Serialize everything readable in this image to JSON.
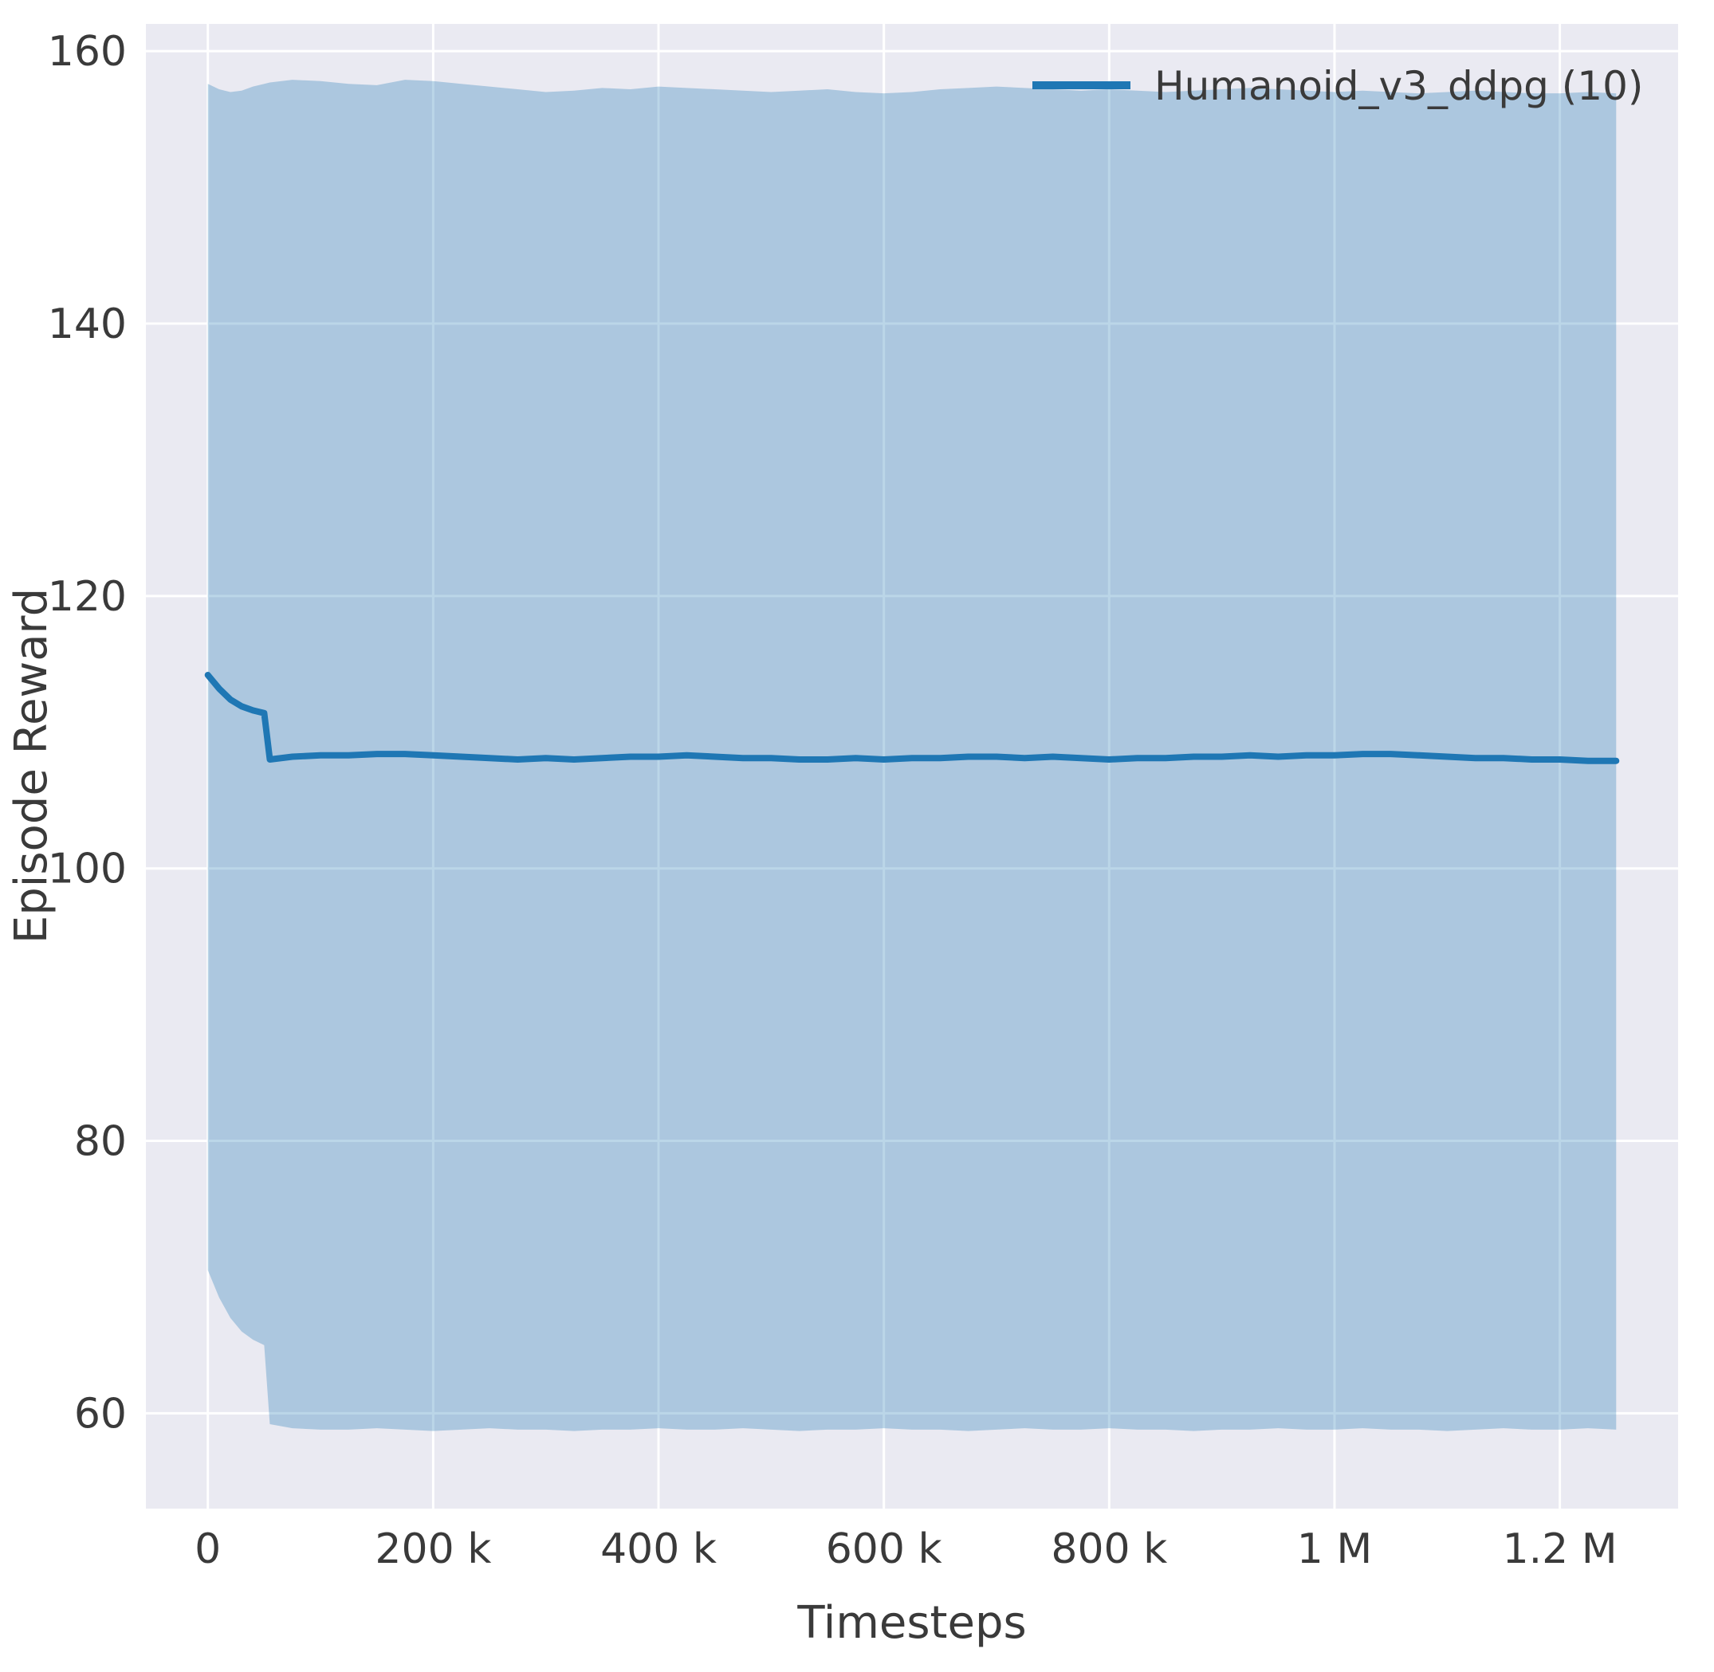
{
  "chart_data": {
    "type": "line",
    "title": "",
    "xlabel": "Timesteps",
    "ylabel": "Episode Reward",
    "plot_bg": "#eaeaf2",
    "grid": true,
    "grid_color": "#ffffff",
    "band_opacity": 0.3,
    "legend_position": "upper right",
    "xlim": [
      -55000,
      1305000
    ],
    "ylim": [
      53,
      162
    ],
    "x_ticks": [
      {
        "value": 0,
        "label": "0"
      },
      {
        "value": 200000,
        "label": "200 k"
      },
      {
        "value": 400000,
        "label": "400 k"
      },
      {
        "value": 600000,
        "label": "600 k"
      },
      {
        "value": 800000,
        "label": "800 k"
      },
      {
        "value": 1000000,
        "label": "1 M"
      },
      {
        "value": 1200000,
        "label": "1.2 M"
      }
    ],
    "y_ticks": [
      {
        "value": 60,
        "label": "60"
      },
      {
        "value": 80,
        "label": "80"
      },
      {
        "value": 100,
        "label": "100"
      },
      {
        "value": 120,
        "label": "120"
      },
      {
        "value": 140,
        "label": "140"
      },
      {
        "value": 160,
        "label": "160"
      }
    ],
    "series": [
      {
        "name": "Humanoid_v3_ddpg (10)",
        "color": "#1f77b4",
        "x": [
          0,
          10000,
          20000,
          30000,
          40000,
          50000,
          55000,
          75000,
          100000,
          125000,
          150000,
          175000,
          200000,
          225000,
          250000,
          275000,
          300000,
          325000,
          350000,
          375000,
          400000,
          425000,
          450000,
          475000,
          500000,
          525000,
          550000,
          575000,
          600000,
          625000,
          650000,
          675000,
          700000,
          725000,
          750000,
          775000,
          800000,
          825000,
          850000,
          875000,
          900000,
          925000,
          950000,
          975000,
          1000000,
          1025000,
          1050000,
          1075000,
          1100000,
          1125000,
          1150000,
          1175000,
          1200000,
          1225000,
          1250000
        ],
        "mean": [
          114.2,
          113.2,
          112.4,
          111.9,
          111.6,
          111.4,
          108.0,
          108.2,
          108.3,
          108.3,
          108.4,
          108.4,
          108.3,
          108.2,
          108.1,
          108.0,
          108.1,
          108.0,
          108.1,
          108.2,
          108.2,
          108.3,
          108.2,
          108.1,
          108.1,
          108.0,
          108.0,
          108.1,
          108.0,
          108.1,
          108.1,
          108.2,
          108.2,
          108.1,
          108.2,
          108.1,
          108.0,
          108.1,
          108.1,
          108.2,
          108.2,
          108.3,
          108.2,
          108.3,
          108.3,
          108.4,
          108.4,
          108.3,
          108.2,
          108.1,
          108.1,
          108.0,
          108.0,
          107.9,
          107.9
        ],
        "upper": [
          157.6,
          157.2,
          157.0,
          157.1,
          157.4,
          157.6,
          157.7,
          157.9,
          157.8,
          157.6,
          157.5,
          157.9,
          157.8,
          157.6,
          157.4,
          157.2,
          157.0,
          157.1,
          157.3,
          157.2,
          157.4,
          157.3,
          157.2,
          157.1,
          157.0,
          157.1,
          157.2,
          157.0,
          156.9,
          157.0,
          157.2,
          157.3,
          157.4,
          157.3,
          157.2,
          157.1,
          157.2,
          157.1,
          157.0,
          157.1,
          157.2,
          157.3,
          157.2,
          157.1,
          157.0,
          157.1,
          157.0,
          156.9,
          157.0,
          157.1,
          157.0,
          156.9,
          156.9,
          157.0,
          156.9
        ],
        "lower": [
          70.5,
          68.5,
          67.0,
          66.0,
          65.4,
          65.0,
          59.2,
          58.9,
          58.8,
          58.8,
          58.9,
          58.8,
          58.7,
          58.8,
          58.9,
          58.8,
          58.8,
          58.7,
          58.8,
          58.8,
          58.9,
          58.8,
          58.8,
          58.9,
          58.8,
          58.7,
          58.8,
          58.8,
          58.9,
          58.8,
          58.8,
          58.7,
          58.8,
          58.9,
          58.8,
          58.8,
          58.9,
          58.8,
          58.8,
          58.7,
          58.8,
          58.8,
          58.9,
          58.8,
          58.8,
          58.9,
          58.8,
          58.8,
          58.7,
          58.8,
          58.9,
          58.8,
          58.8,
          58.9,
          58.8
        ]
      }
    ]
  },
  "colors": {
    "text": "#3a3a3a",
    "figure_bg": "#ffffff"
  }
}
